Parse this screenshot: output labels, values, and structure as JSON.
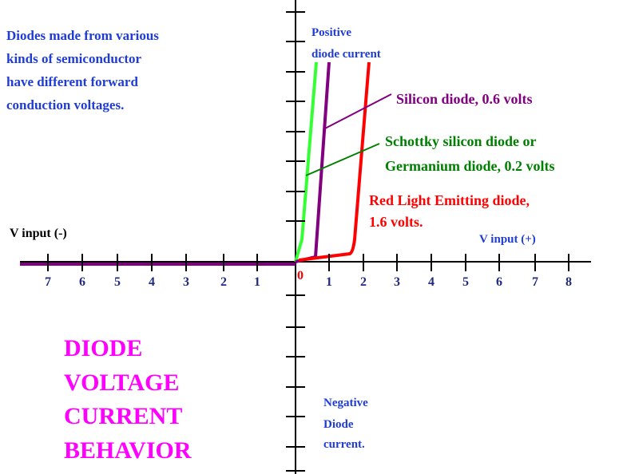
{
  "intro": [
    "Diodes made from various",
    "kinds of semiconductor",
    "have different forward",
    "conduction voltages."
  ],
  "positive_label": [
    "Positive",
    "diode current"
  ],
  "negative_label": [
    "Negative",
    "Diode",
    "current."
  ],
  "silicon_label": "Silicon diode, 0.6 volts",
  "schottky_label": [
    "Schottky silicon diode or",
    "Germanium diode, 0.2 volts"
  ],
  "led_label": [
    "Red Light Emitting diode,",
    "1.6 volts."
  ],
  "v_minus": "V input (-)",
  "v_plus": "V input (+)",
  "title": [
    "DIODE",
    "VOLTAGE",
    "CURRENT",
    "BEHAVIOR"
  ],
  "negative_ticks": [
    "7",
    "6",
    "5",
    "4",
    "3",
    "2",
    "1"
  ],
  "origin": "0",
  "positive_ticks": [
    "1",
    "2",
    "3",
    "4",
    "5",
    "6",
    "7",
    "8"
  ]
}
